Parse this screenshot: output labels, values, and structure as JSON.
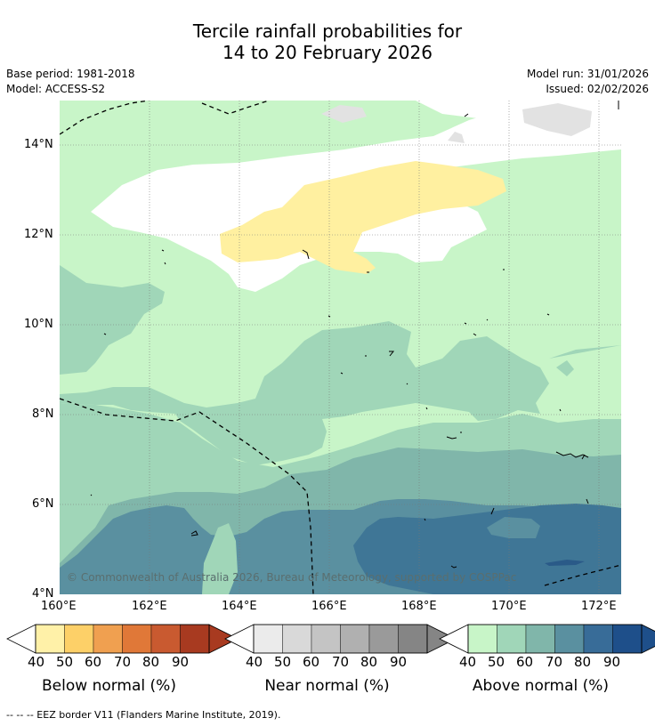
{
  "title": {
    "line1": "Tercile rainfall probabilities for",
    "line2": "14 to 20 February 2026"
  },
  "meta": {
    "base_period": "Base period: 1981-2018",
    "model": "Model: ACCESS-S2",
    "model_run": "Model run: 31/01/2026",
    "issued": "Issued: 02/02/2026"
  },
  "map": {
    "lat_labels": [
      "14°N",
      "12°N",
      "10°N",
      "8°N",
      "6°N",
      "4°N"
    ],
    "lon_labels": [
      "160°E",
      "162°E",
      "164°E",
      "166°E",
      "168°E",
      "170°E",
      "172°E"
    ],
    "copyright": "© Commonwealth of Australia 2026, Bureau of Meteorology, supported by COSPPac"
  },
  "colorbars": [
    {
      "title": "Below normal (%)",
      "ticks": [
        "40",
        "50",
        "60",
        "70",
        "80",
        "90"
      ],
      "colors": [
        "#fff1a8",
        "#fdd068",
        "#f0a050",
        "#e07838",
        "#c95a30",
        "#a83a20"
      ]
    },
    {
      "title": "Near normal (%)",
      "ticks": [
        "40",
        "50",
        "60",
        "70",
        "80",
        "90"
      ],
      "colors": [
        "#ebebeb",
        "#d9d9d9",
        "#c4c4c4",
        "#b0b0b0",
        "#9a9a9a",
        "#858585"
      ]
    },
    {
      "title": "Above normal (%)",
      "ticks": [
        "40",
        "50",
        "60",
        "70",
        "80",
        "90"
      ],
      "colors": [
        "#c8f5c8",
        "#a0d6b8",
        "#80b6aa",
        "#5a90a0",
        "#386c98",
        "#1e4f8a"
      ]
    }
  ],
  "footer": "--  --  -- EEZ border V11 (Flanders Marine Institute, 2019)."
}
